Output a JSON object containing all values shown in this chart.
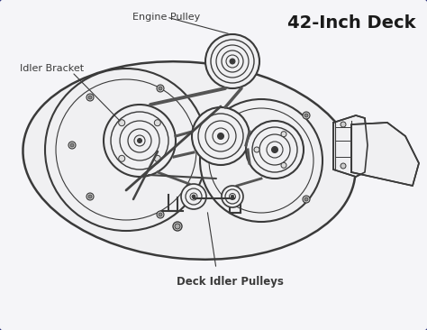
{
  "title": "42-Inch Deck",
  "bg_color": "#ffffff",
  "inner_bg": "#f5f5f8",
  "border_color": "#2a2f7a",
  "line_color": "#3a3a3a",
  "deck_fill": "#f0f0f2",
  "label_engine_pulley": "Engine Pulley",
  "label_idler_bracket": "Idler Bracket",
  "label_deck_idler": "Deck Idler Pulleys",
  "title_fontsize": 14,
  "label_fontsize": 8
}
